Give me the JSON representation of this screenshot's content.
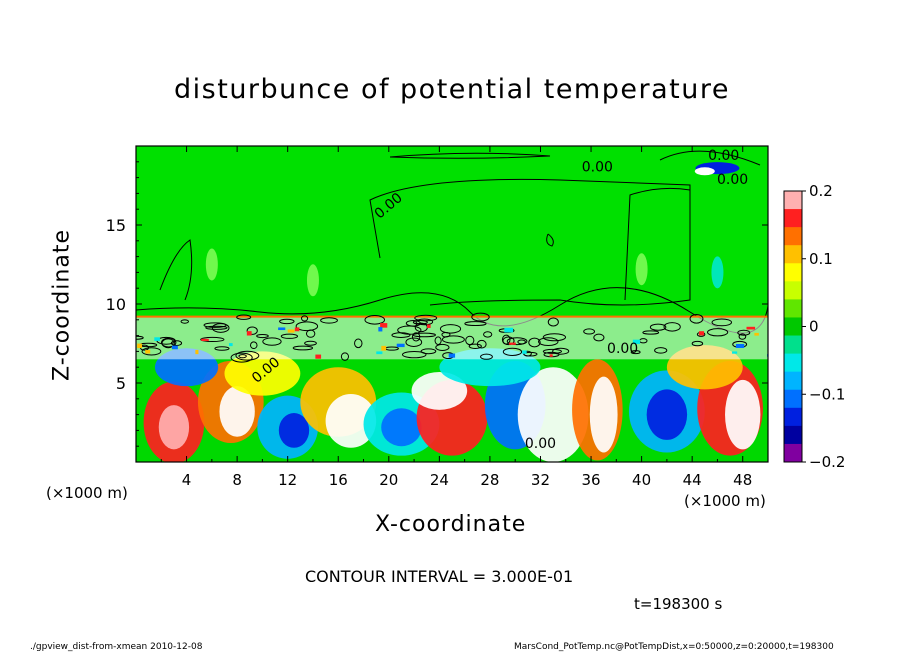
{
  "chart_data": {
    "type": "heatmap",
    "title": "disturbunce of potential temperature",
    "xlabel": "X-coordinate",
    "ylabel": "Z-coordinate",
    "x_unit_label": "(×1000 m)",
    "xlim": [
      0,
      50
    ],
    "ylim": [
      0,
      20
    ],
    "x_ticks": [
      4,
      8,
      12,
      16,
      20,
      24,
      28,
      32,
      36,
      40,
      44,
      48
    ],
    "y_ticks": [
      5,
      10,
      15
    ],
    "colorbar": {
      "range": [
        -0.2,
        0.2
      ],
      "tick_values": [
        0.2,
        0.1,
        0,
        -0.1,
        -0.2
      ],
      "tick_labels": [
        "0.2",
        "0.1",
        "0",
        "−0.1",
        "−0.2"
      ],
      "colors": [
        "#ffb0b0",
        "#ff2020",
        "#ff7000",
        "#ffc000",
        "#ffff00",
        "#c8ff00",
        "#60e600",
        "#00c800",
        "#00e08c",
        "#00e8e8",
        "#00b4ff",
        "#0070ff",
        "#0020e0",
        "#0000a0",
        "#8000a0"
      ]
    },
    "regions": {
      "upper_layer_value": 0.0,
      "interface_height": 9.2
    },
    "contour_labels": [
      "0.00",
      "0.00",
      "0.00",
      "0.00",
      "0.00",
      "0.00",
      "0.00"
    ],
    "contour_interval_text": "CONTOUR INTERVAL = 3.000E-01",
    "time_text": "t=198300 s"
  },
  "footer": {
    "left": "./gpview_dist-from-xmean   2010-12-08",
    "right": "MarsCond_PotTemp.nc@PotTempDist,x=0:50000,z=0:20000,t=198300"
  }
}
